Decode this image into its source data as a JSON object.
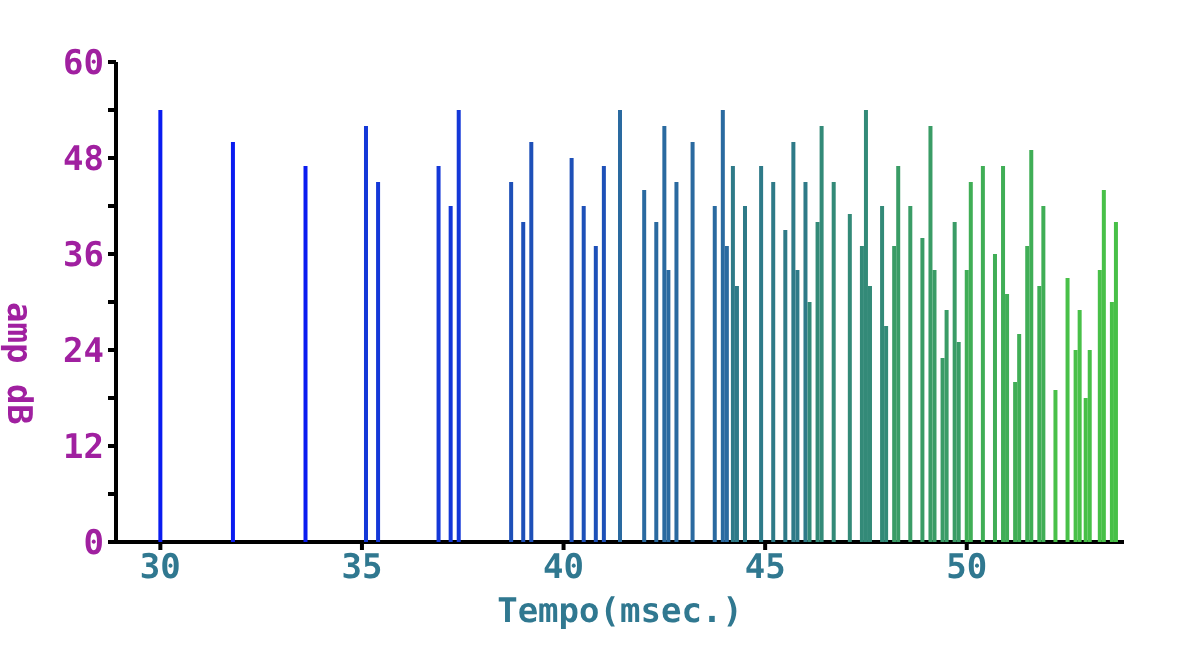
{
  "chart_data": {
    "type": "bar",
    "xlabel": "Tempo(msec.)",
    "ylabel": "amp dB",
    "x": [
      30.0,
      31.8,
      33.6,
      35.1,
      35.4,
      36.9,
      37.2,
      37.4,
      38.7,
      39.0,
      39.2,
      40.2,
      40.5,
      40.8,
      41.0,
      41.4,
      42.0,
      42.3,
      42.5,
      42.6,
      42.8,
      43.2,
      43.75,
      43.95,
      44.05,
      44.2,
      44.3,
      44.5,
      44.9,
      45.2,
      45.5,
      45.7,
      45.8,
      46.0,
      46.1,
      46.3,
      46.4,
      46.7,
      47.1,
      47.4,
      47.5,
      47.6,
      47.9,
      48.0,
      48.2,
      48.3,
      48.6,
      48.9,
      49.1,
      49.2,
      49.4,
      49.5,
      49.7,
      49.8,
      50.0,
      50.1,
      50.4,
      50.7,
      50.9,
      51.0,
      51.2,
      51.3,
      51.5,
      51.6,
      51.8,
      51.9,
      52.2,
      52.5,
      52.7,
      52.8,
      52.95,
      53.05,
      53.3,
      53.4,
      53.6,
      53.7
    ],
    "values": [
      54,
      50,
      47,
      52,
      45,
      47,
      42,
      54,
      45,
      40,
      50,
      48,
      42,
      37,
      47,
      54,
      44,
      40,
      52,
      34,
      45,
      50,
      42,
      54,
      37,
      47,
      32,
      42,
      47,
      45,
      39,
      50,
      34,
      45,
      30,
      40,
      52,
      45,
      41,
      37,
      54,
      32,
      42,
      27,
      37,
      47,
      42,
      38,
      52,
      34,
      23,
      29,
      40,
      25,
      34,
      45,
      47,
      36,
      47,
      31,
      20,
      26,
      37,
      49,
      32,
      42,
      19,
      33,
      24,
      29,
      18,
      24,
      34,
      44,
      30,
      40
    ],
    "colors": [
      "#0a1cf0",
      "#0a1cf0",
      "#0a1cf0",
      "#1438d8",
      "#1438d8",
      "#1438d8",
      "#1438d8",
      "#1438d8",
      "#1e50b8",
      "#1e50b8",
      "#1e50b8",
      "#1e50b8",
      "#1e50b8",
      "#1e50b8",
      "#1e50b8",
      "#2a6aa0",
      "#2a6aa0",
      "#2a6aa0",
      "#2a6aa0",
      "#2a6aa0",
      "#2a6aa0",
      "#2a6aa0",
      "#2a6aa0",
      "#2a6aa0",
      "#2a6aa0",
      "#2e7a88",
      "#2e7a88",
      "#2e7a88",
      "#2e7a88",
      "#2e7a88",
      "#2e7a88",
      "#2e7a88",
      "#2e7a88",
      "#2e7a88",
      "#338a78",
      "#338a78",
      "#338a78",
      "#338a78",
      "#338a78",
      "#338a78",
      "#338a78",
      "#338a78",
      "#338a78",
      "#338a78",
      "#3a9c66",
      "#3a9c66",
      "#3a9c66",
      "#3a9c66",
      "#3a9c66",
      "#3a9c66",
      "#3a9c66",
      "#3a9c66",
      "#3a9c66",
      "#3a9c66",
      "#40ae56",
      "#40ae56",
      "#40ae56",
      "#40ae56",
      "#40ae56",
      "#40ae56",
      "#40ae56",
      "#40ae56",
      "#40ae56",
      "#40ae56",
      "#40ae56",
      "#40ae56",
      "#48c048",
      "#48c048",
      "#48c048",
      "#48c048",
      "#48c048",
      "#48c048",
      "#48c048",
      "#48c048",
      "#48c048",
      "#48c048"
    ],
    "xlim": [
      28.9,
      53.9
    ],
    "xticks": [
      30,
      35,
      40,
      45,
      50
    ],
    "ylim": [
      0,
      60
    ],
    "yticks": [
      0,
      {
        "value": 6,
        "label": null
      },
      12,
      {
        "value": 18,
        "label": null
      },
      24,
      {
        "value": 30,
        "label": null
      },
      36,
      {
        "value": 42,
        "label": null
      },
      48,
      {
        "value": 54,
        "label": null
      },
      60
    ],
    "grid": false,
    "legend": false
  }
}
